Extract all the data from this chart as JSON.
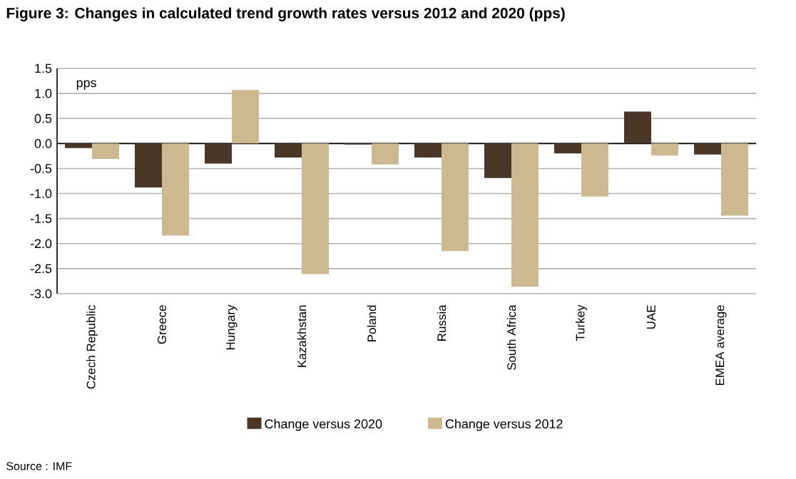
{
  "chart_data": {
    "type": "bar",
    "title": "Figure 3: Changes in calculated trend growth rates versus 2012 and 2020 (pps)",
    "ylabel": "pps",
    "annotations": [
      "Source : IMF"
    ],
    "categories": [
      "Czech Republic",
      "Greece",
      "Hungary",
      "Kazakhstan",
      "Poland",
      "Russia",
      "South Africa",
      "Turkey",
      "UAE",
      "EMEA average"
    ],
    "series": [
      {
        "name": "Change versus 2020",
        "color": "#4a3728",
        "values": [
          -0.09,
          -0.88,
          -0.4,
          -0.28,
          -0.02,
          -0.28,
          -0.69,
          -0.2,
          0.64,
          -0.22
        ]
      },
      {
        "name": "Change versus 2012",
        "color": "#cdb892",
        "values": [
          -0.31,
          -1.84,
          1.07,
          -2.61,
          -0.42,
          -2.15,
          -2.86,
          -1.06,
          -0.24,
          -1.44
        ]
      }
    ],
    "ylim": [
      -3.0,
      1.5
    ],
    "yticks": [
      {
        "value": -3.0,
        "label": "-3.0"
      },
      {
        "value": -2.5,
        "label": "-2.5"
      },
      {
        "value": -2.0,
        "label": "-2.0"
      },
      {
        "value": -1.5,
        "label": "-1.5"
      },
      {
        "value": -1.0,
        "label": "-1.0"
      },
      {
        "value": -0.5,
        "label": "-0.5"
      },
      {
        "value": 0,
        "label": "0.0"
      },
      {
        "value": 0.5,
        "label": "0.5"
      },
      {
        "value": 1.0,
        "label": "1.0"
      },
      {
        "value": 1.5,
        "label": "1.5"
      }
    ],
    "grid": "y",
    "legend": "bottom"
  }
}
